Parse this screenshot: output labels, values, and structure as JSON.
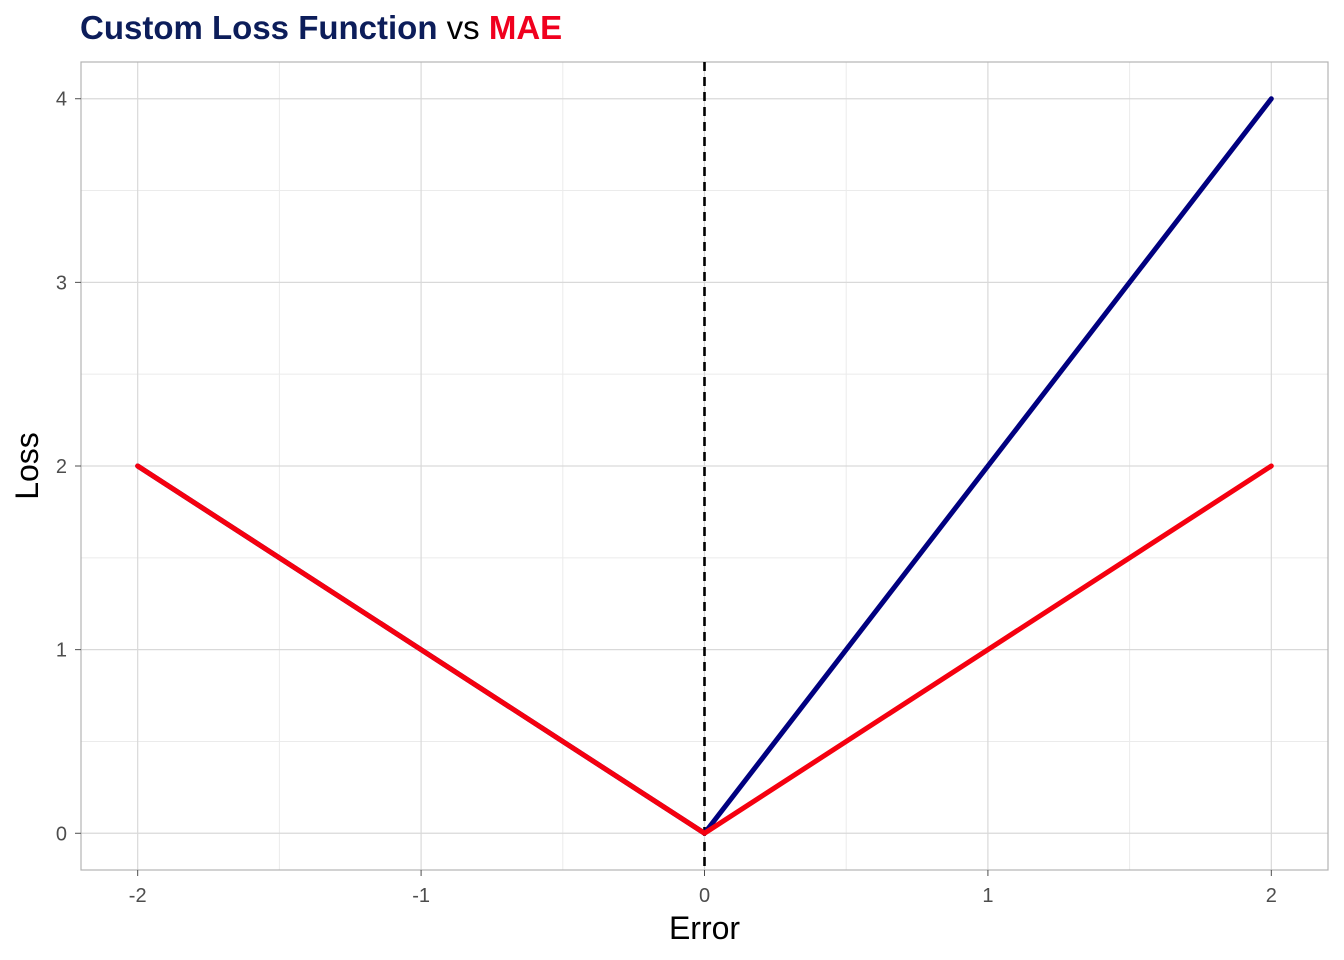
{
  "title": {
    "part1": "Custom Loss Function",
    "part2": "vs",
    "part3": "MAE",
    "colors": {
      "part1": "#0c1d5a",
      "part2": "#000000",
      "part3": "#f0001e"
    }
  },
  "chart_data": {
    "type": "line",
    "xlabel": "Error",
    "ylabel": "Loss",
    "xlim": [
      -2.2,
      2.2
    ],
    "ylim": [
      -0.2,
      4.2
    ],
    "x_ticks": [
      -2,
      -1,
      0,
      1,
      2
    ],
    "y_ticks": [
      0,
      1,
      2,
      3,
      4
    ],
    "x_tick_labels": [
      "-2",
      "-1",
      "0",
      "1",
      "2"
    ],
    "y_tick_labels": [
      "0",
      "1",
      "2",
      "3",
      "4"
    ],
    "x_minor": [
      -1.5,
      -0.5,
      0.5,
      1.5
    ],
    "y_minor": [
      0.5,
      1.5,
      2.5,
      3.5
    ],
    "grid": true,
    "vline": {
      "x": 0,
      "style": "dashed",
      "color": "#000000"
    },
    "series": [
      {
        "name": "Custom Loss Function",
        "color": "#000080",
        "x": [
          -2,
          0,
          2
        ],
        "y": [
          2,
          0,
          4
        ]
      },
      {
        "name": "MAE",
        "color": "#f5000f",
        "x": [
          -2,
          0,
          2
        ],
        "y": [
          2,
          0,
          2
        ]
      }
    ]
  }
}
